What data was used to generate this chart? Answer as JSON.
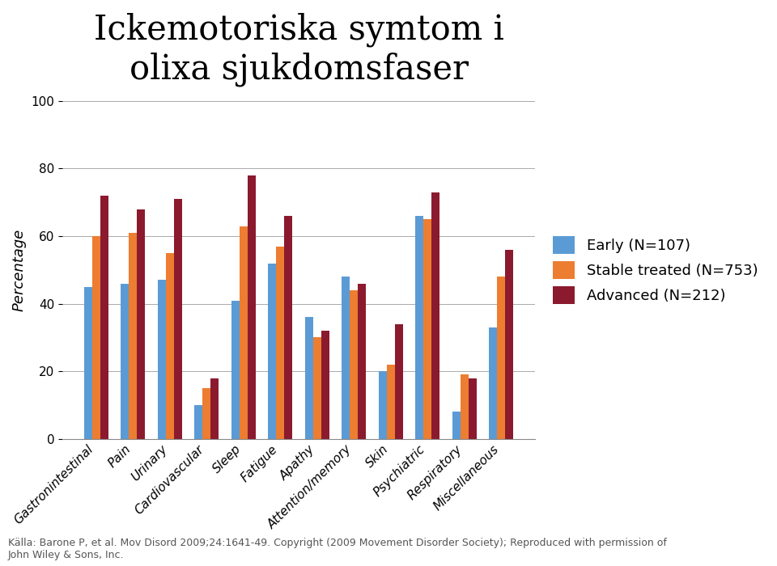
{
  "title": "Ickemotoriska symtom i\nolixa sjukdomsfaser",
  "ylabel": "Percentage",
  "categories": [
    "Gastronintestinal",
    "Pain",
    "Urinary",
    "Cardiovascular",
    "Sleep",
    "Fatigue",
    "Apathy",
    "Attention/memory",
    "Skin",
    "Psychiatric",
    "Respiratory",
    "Miscellaneous"
  ],
  "series": [
    {
      "name": "Early (N=107)",
      "color": "#5B9BD5",
      "values": [
        45,
        46,
        47,
        10,
        41,
        52,
        36,
        48,
        20,
        66,
        8,
        33
      ]
    },
    {
      "name": "Stable treated (N=753)",
      "color": "#ED7D31",
      "values": [
        60,
        61,
        55,
        15,
        63,
        57,
        30,
        44,
        22,
        65,
        19,
        48
      ]
    },
    {
      "name": "Advanced (N=212)",
      "color": "#8B1A2E",
      "values": [
        72,
        68,
        71,
        18,
        78,
        66,
        32,
        46,
        34,
        73,
        18,
        56
      ]
    }
  ],
  "ylim": [
    0,
    100
  ],
  "yticks": [
    0,
    20,
    40,
    60,
    80,
    100
  ],
  "grid_color": "#AAAAAA",
  "footnote": "Källa: Barone P, et al. Mov Disord 2009;24:1641-49. Copyright (2009 Movement Disorder Society); Reproduced with permission of\nJohn Wiley & Sons, Inc.",
  "bar_width": 0.22,
  "background_color": "#FFFFFF",
  "title_fontsize": 30,
  "axis_label_fontsize": 13,
  "tick_fontsize": 11,
  "legend_fontsize": 13,
  "footnote_fontsize": 9
}
